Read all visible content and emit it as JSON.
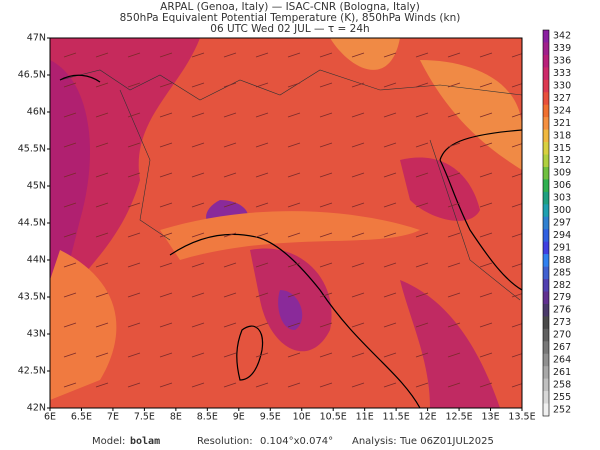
{
  "header": {
    "line1": "ARPAL (Genoa, Italy)  —  ISAC-CNR (Bologna, Italy)",
    "line2": "850hPa Equivalent Potential Temperature (K), 850hPa Winds (kn)",
    "line3": "06 UTC Wed 02 JUL  —  τ = 24h"
  },
  "map": {
    "lon_ticks": [
      "6E",
      "6.5E",
      "7E",
      "7.5E",
      "8E",
      "8.5E",
      "9E",
      "9.5E",
      "10E",
      "10.5E",
      "11E",
      "11.5E",
      "12E",
      "12.5E",
      "13E",
      "13.5E"
    ],
    "lat_ticks": [
      "47N",
      "46.5N",
      "46N",
      "45.5N",
      "45N",
      "44.5N",
      "44N",
      "43.5N",
      "43N",
      "42.5N",
      "42N"
    ]
  },
  "colorbar": {
    "labels": [
      342,
      339,
      336,
      333,
      330,
      327,
      324,
      321,
      318,
      315,
      312,
      309,
      306,
      303,
      300,
      297,
      294,
      291,
      288,
      285,
      282,
      279,
      276,
      273,
      270,
      267,
      264,
      261,
      258,
      255,
      252
    ]
  },
  "footer": {
    "model_label": "Model:",
    "model": "bolam",
    "resolution_label": "Resolution:",
    "resolution": "0.104°x0.074°",
    "analysis_label": "Analysis:",
    "analysis": "Tue 06Z01JUL2025"
  }
}
